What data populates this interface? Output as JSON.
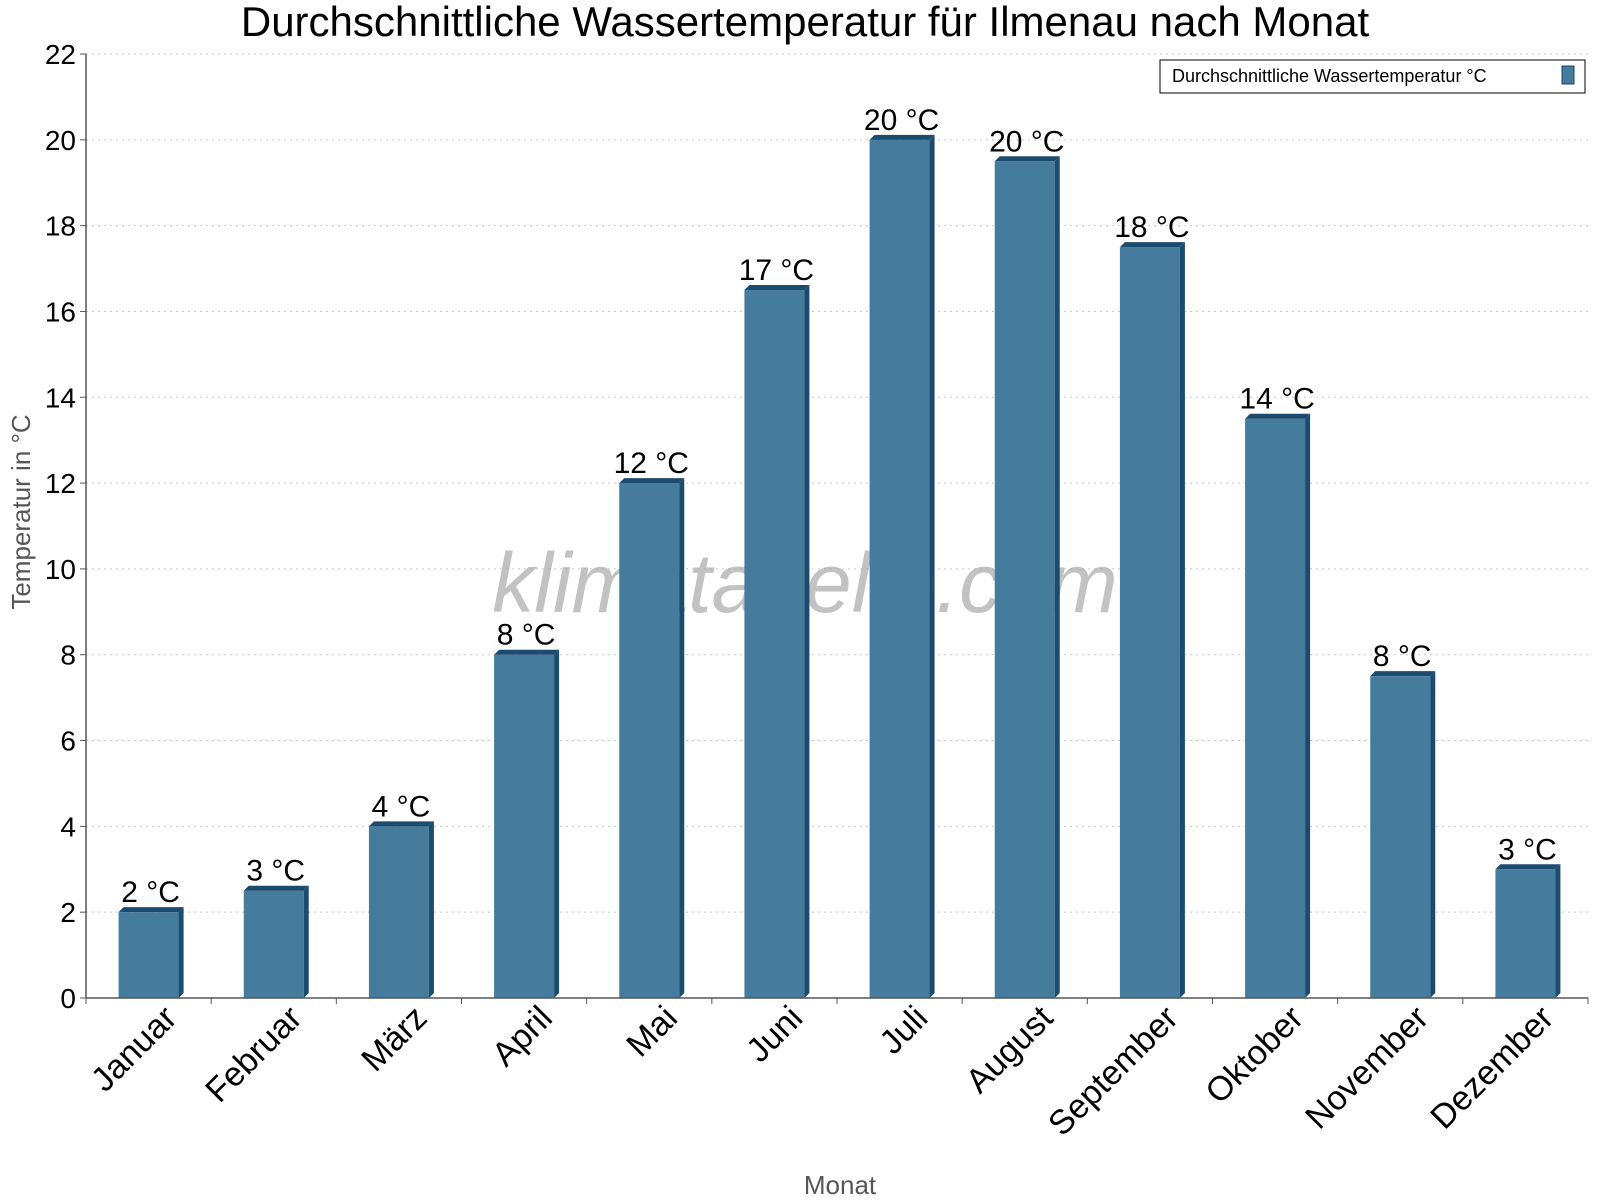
{
  "chart_data": {
    "type": "bar",
    "title": "Durchschnittliche Wassertemperatur für Ilmenau nach Monat",
    "xlabel": "Monat",
    "ylabel": "Temperatur in °C",
    "ylim": [
      0,
      22
    ],
    "yticks": [
      0,
      2,
      4,
      6,
      8,
      10,
      12,
      14,
      16,
      18,
      20,
      22
    ],
    "grid": true,
    "legend_position": "top-right",
    "categories": [
      "Januar",
      "Februar",
      "März",
      "April",
      "Mai",
      "Juni",
      "Juli",
      "August",
      "September",
      "Oktober",
      "November",
      "Dezember"
    ],
    "series": [
      {
        "name": "Durchschnittliche Wassertemperatur °C",
        "color": "#457b9d",
        "values": [
          2.0,
          2.5,
          4.0,
          8.0,
          12.0,
          16.5,
          20.0,
          19.5,
          17.5,
          13.5,
          7.5,
          3.0
        ],
        "labels": [
          "2 °C",
          "3 °C",
          "4 °C",
          "8 °C",
          "12 °C",
          "17 °C",
          "20 °C",
          "20 °C",
          "18 °C",
          "14 °C",
          "8 °C",
          "3 °C"
        ]
      }
    ],
    "watermark": "klimatabelle.com"
  }
}
